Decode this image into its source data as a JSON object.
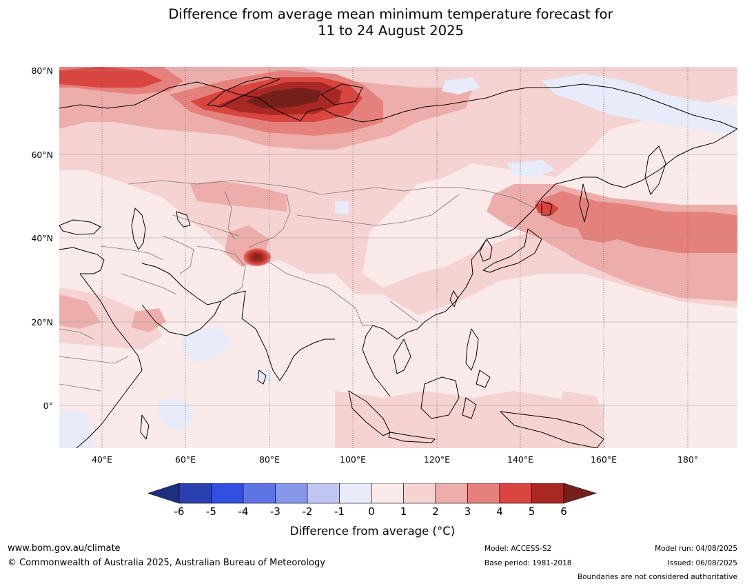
{
  "title": {
    "line1": "Difference from average mean minimum temperature forecast for",
    "line2": "11 to 24 August 2025"
  },
  "map": {
    "lat_labels": [
      "80°N",
      "60°N",
      "40°N",
      "20°N",
      "0°"
    ],
    "lon_labels": [
      "40°E",
      "60°E",
      "80°E",
      "100°E",
      "120°E",
      "140°E",
      "160°E",
      "180°"
    ],
    "lat_range": [
      -10,
      80
    ],
    "lon_range": [
      30,
      192
    ]
  },
  "colorbar": {
    "ticks": [
      "-6",
      "-5",
      "-4",
      "-3",
      "-2",
      "-1",
      "0",
      "1",
      "2",
      "3",
      "4",
      "5",
      "6"
    ],
    "colors": [
      "#1d2f80",
      "#2a40b0",
      "#3250e0",
      "#5e73e4",
      "#8798ea",
      "#bfc6f2",
      "#e8ebfa",
      "#fbeaea",
      "#f4d3d2",
      "#edaeab",
      "#e5817c",
      "#d9453f",
      "#a82923",
      "#751f1a"
    ],
    "label": "Difference from average (°C)"
  },
  "footer": {
    "website": "www.bom.gov.au/climate",
    "copyright": "© Commonwealth of Australia 2025, Australian Bureau of Meteorology",
    "model": "Model: ACCESS-S2",
    "base_period": "Base period: 1981-2018",
    "model_run": "Model run: 04/08/2025",
    "issued": "Issued: 06/08/2025",
    "disclaimer": "Boundaries are not considered authoritative"
  }
}
